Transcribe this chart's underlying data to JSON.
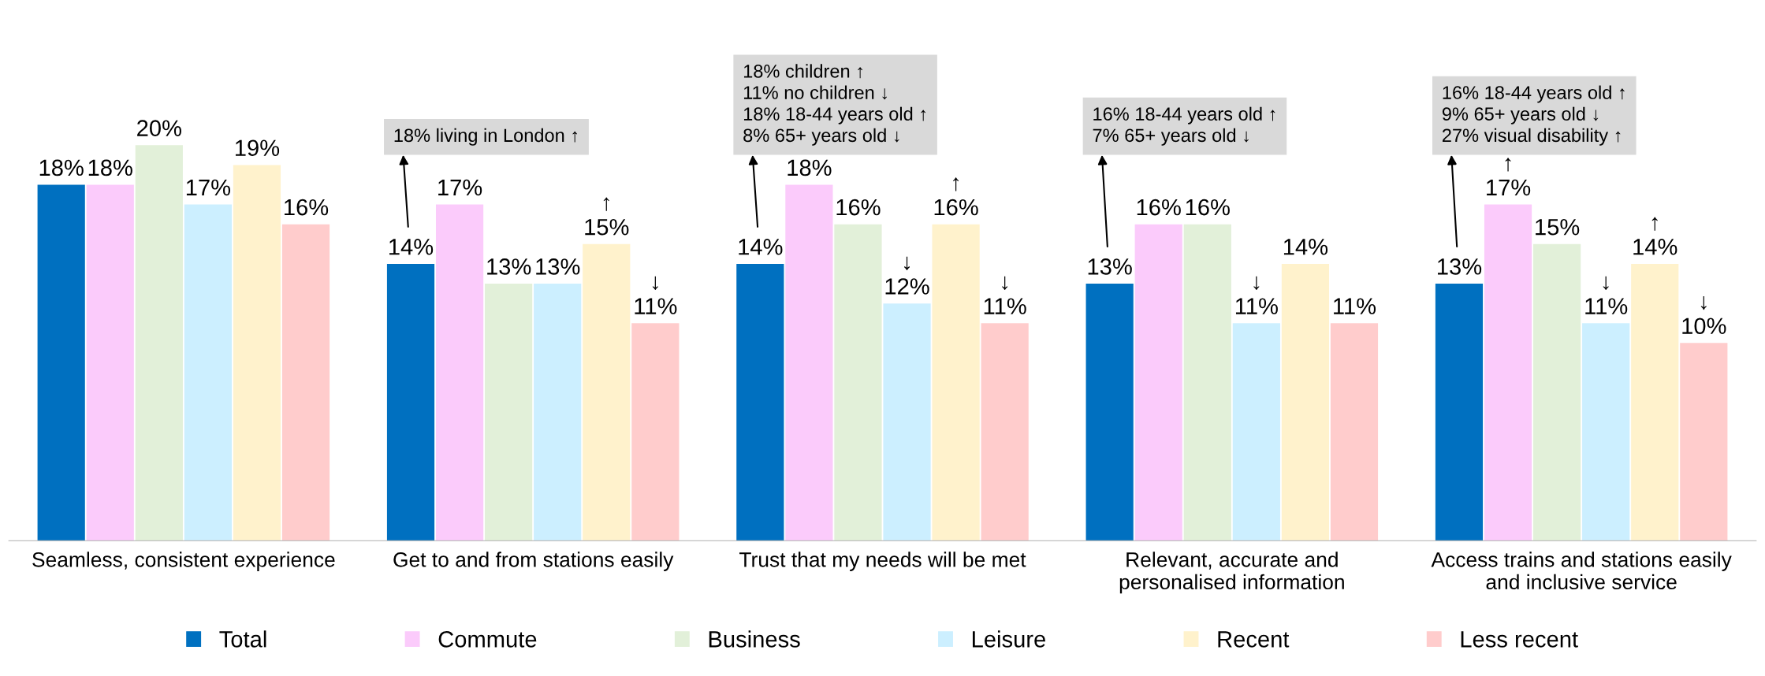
{
  "chart_data": {
    "type": "bar",
    "categories": [
      "Seamless, consistent experience",
      "Get to and from stations easily",
      "Trust that my needs will be met",
      "Relevant, accurate and\npersonalised information",
      "Access trains and stations easily\nand inclusive service"
    ],
    "series": [
      {
        "name": "Total",
        "color": "#0070c0",
        "values": [
          18,
          14,
          14,
          13,
          13
        ],
        "value_labels": [
          "18%",
          "14%",
          "14%",
          "13%",
          "13%"
        ]
      },
      {
        "name": "Commute",
        "color": "#fbcbfb",
        "values": [
          18,
          17,
          18,
          16,
          17
        ],
        "value_labels": [
          "18%",
          "17%",
          "18%",
          "16%",
          "↑\n17%"
        ]
      },
      {
        "name": "Business",
        "color": "#e2f0d9",
        "values": [
          20,
          13,
          16,
          16,
          15
        ],
        "value_labels": [
          "20%",
          "13%",
          "16%",
          "16%",
          "15%"
        ]
      },
      {
        "name": "Leisure",
        "color": "#ccefff",
        "values": [
          17,
          13,
          12,
          11,
          11
        ],
        "value_labels": [
          "17%",
          "13%",
          "↓\n12%",
          "↓\n11%",
          "↓\n11%"
        ]
      },
      {
        "name": "Recent",
        "color": "#fff2cc",
        "values": [
          19,
          15,
          16,
          14,
          14
        ],
        "value_labels": [
          "19%",
          "↑\n15%",
          "↑\n16%",
          "14%",
          "↑\n14%"
        ]
      },
      {
        "name": "Less recent",
        "color": "#ffcccc",
        "values": [
          16,
          11,
          11,
          11,
          10
        ],
        "value_labels": [
          "16%",
          "↓\n11%",
          "↓\n11%",
          "11%",
          "↓\n10%"
        ]
      }
    ],
    "annotations": [
      "18% living in London ↑",
      "18% children ↑\n11% no children ↓\n18% 18-44 years old ↑\n8% 65+ years old ↓",
      "16% 18-44 years old ↑\n7% 65+ years old ↓",
      "16% 18-44 years old ↑\n9% 65+ years old ↓\n27% visual disability ↑"
    ],
    "legend": "bottom",
    "grid": false
  }
}
